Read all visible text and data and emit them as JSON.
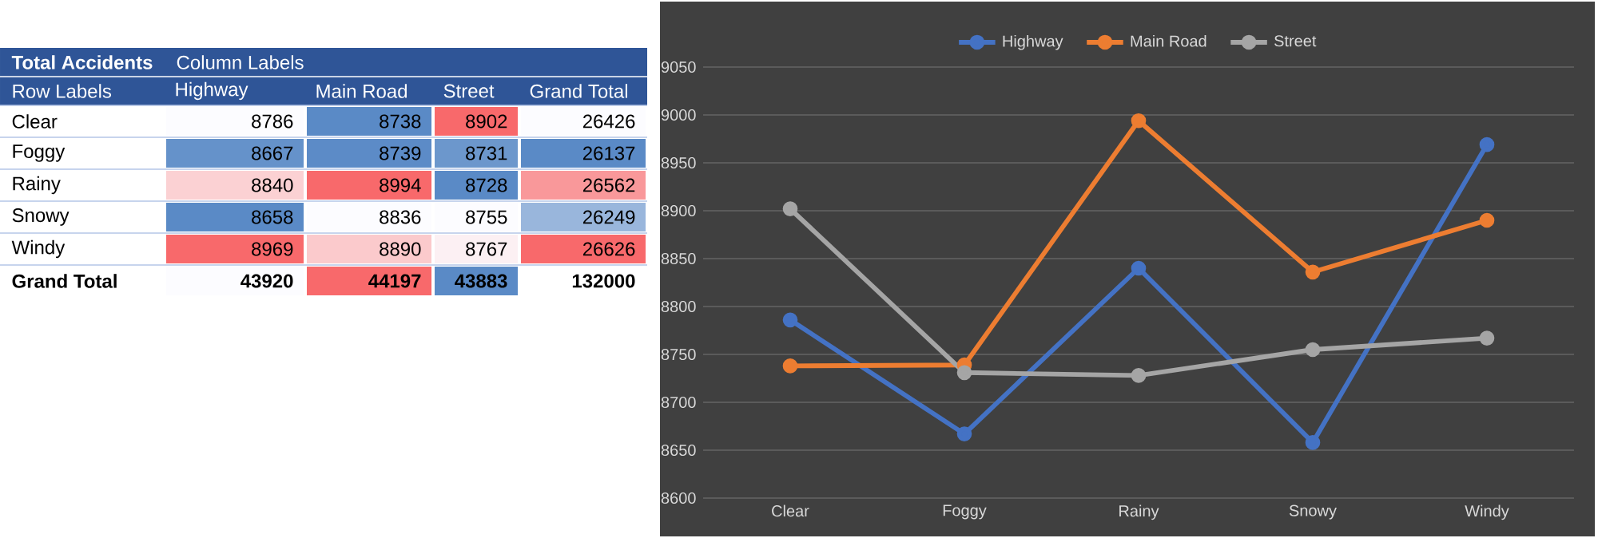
{
  "chart_data": [
    {
      "type": "heatmap",
      "title": "Total Accidents",
      "xlabel": "Column Labels",
      "ylabel": "Row Labels",
      "categories": [
        "Highway",
        "Main Road",
        "Street",
        "Grand Total"
      ],
      "y_categories": [
        "Clear",
        "Foggy",
        "Rainy",
        "Snowy",
        "Windy",
        "Grand Total"
      ],
      "cells": [
        [
          8786,
          8738,
          8902,
          26426
        ],
        [
          8667,
          8739,
          8731,
          26137
        ],
        [
          8840,
          8994,
          8728,
          26562
        ],
        [
          8658,
          8836,
          8755,
          26249
        ],
        [
          8969,
          8890,
          8767,
          26626
        ],
        [
          43920,
          44197,
          43883,
          132000
        ]
      ],
      "data_labels": true
    },
    {
      "type": "line",
      "categories": [
        "Clear",
        "Foggy",
        "Rainy",
        "Snowy",
        "Windy"
      ],
      "series": [
        {
          "name": "Highway",
          "color": "#4472c4",
          "values": [
            8786,
            8667,
            8840,
            8658,
            8969
          ]
        },
        {
          "name": "Main Road",
          "color": "#ed7d31",
          "values": [
            8738,
            8739,
            8994,
            8836,
            8890
          ]
        },
        {
          "name": "Street",
          "color": "#a5a5a5",
          "values": [
            8902,
            8731,
            8728,
            8755,
            8767
          ]
        }
      ],
      "ylim": [
        8600,
        9050
      ],
      "yticks": [
        8600,
        8650,
        8700,
        8750,
        8800,
        8850,
        8900,
        8950,
        9000,
        9050
      ],
      "grid": "y",
      "legend": "top",
      "marker": "circle",
      "line_style": "solid"
    }
  ]
}
